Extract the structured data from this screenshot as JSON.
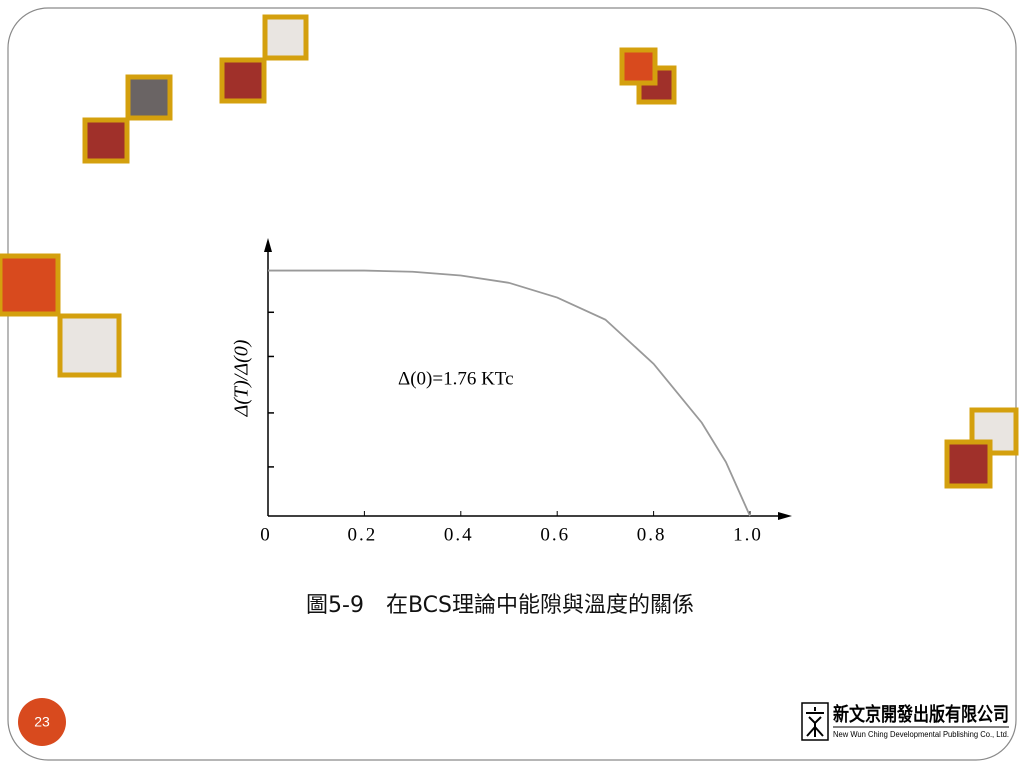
{
  "chart_data": {
    "type": "line",
    "y_label": "Δ(T)/Δ(0)",
    "annotation": "Δ(0)=1.76 KTc",
    "x": [
      0,
      0.1,
      0.2,
      0.3,
      0.4,
      0.5,
      0.6,
      0.7,
      0.8,
      0.9,
      0.95,
      1.0
    ],
    "values": [
      1,
      1,
      1,
      0.995,
      0.98,
      0.95,
      0.89,
      0.8,
      0.62,
      0.38,
      0.22,
      0
    ],
    "color": "#999999",
    "xlim": [
      0,
      1.08
    ],
    "ylim": [
      0,
      1.1
    ],
    "xticks": [
      0,
      0.2,
      0.4,
      0.6,
      0.8,
      {
        "value": 1,
        "label": "1.0"
      }
    ],
    "yticks": [
      0.2,
      0.42,
      0.65,
      0.83
    ]
  },
  "caption": "圖5-9　在BCS理論中能隙與溫度的關係",
  "page_number": "23",
  "publisher": {
    "name": "新文京開發出版有限公司",
    "english": "New Wun Ching Developmental Publishing Co., Ltd."
  }
}
